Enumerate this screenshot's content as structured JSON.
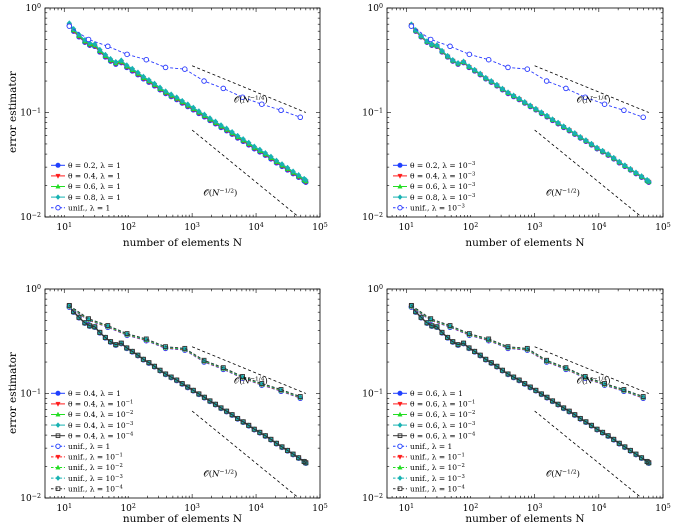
{
  "figure": {
    "panel_count": 4
  },
  "styles": {
    "0.2": {
      "color": "#1f3fff",
      "marker": "circle"
    },
    "0.4": {
      "color": "#ff1a1a",
      "marker": "triangle-down"
    },
    "0.6": {
      "color": "#22dd22",
      "marker": "triangle-up"
    },
    "0.8": {
      "color": "#17b2b2",
      "marker": "diamond"
    },
    "unif": {
      "color": "#2a3bff",
      "marker": "circle-open"
    },
    "lam1": {
      "color": "#1f3fff",
      "marker": "circle"
    },
    "lam01": {
      "color": "#ff1a1a",
      "marker": "triangle-down"
    },
    "lam02": {
      "color": "#22dd22",
      "marker": "triangle-up"
    },
    "lam03": {
      "color": "#17b2b2",
      "marker": "diamond"
    },
    "lam04": {
      "color": "#333333",
      "marker": "square"
    }
  },
  "chart_data": [
    {
      "type": "line",
      "scale": "log-log",
      "xlabel": "number of elements N",
      "ylabel": "error estimator",
      "xlim": [
        5,
        100000
      ],
      "ylim": [
        0.01,
        1
      ],
      "x_ticks": [
        "10^1",
        "10^2",
        "10^3",
        "10^4",
        "10^5"
      ],
      "y_ticks": [
        "10^-2",
        "10^-1",
        "10^0"
      ],
      "legend_position": "lower-left",
      "annotations": [
        "O(N^{-1/4})",
        "O(N^{-1/2})"
      ],
      "series": [
        {
          "name": "θ = 0.2, λ = 1",
          "style": "0.2",
          "shift": 0.0
        },
        {
          "name": "θ = 0.4, λ = 1",
          "style": "0.4",
          "shift": 0.01
        },
        {
          "name": "θ = 0.6, λ = 1",
          "style": "0.6",
          "shift": 0.025
        },
        {
          "name": "θ = 0.8, λ = 1",
          "style": "0.8",
          "shift": 0.05
        },
        {
          "name": "unif., λ = 1",
          "style": "unif",
          "uniform": true
        }
      ]
    },
    {
      "type": "line",
      "scale": "log-log",
      "xlabel": "number of elements N",
      "ylabel": "",
      "xlim": [
        5,
        100000
      ],
      "ylim": [
        0.01,
        1
      ],
      "x_ticks": [
        "10^1",
        "10^2",
        "10^3",
        "10^4",
        "10^5"
      ],
      "y_ticks": [
        "10^-2",
        "10^-1",
        "10^0"
      ],
      "legend_position": "lower-left",
      "annotations": [
        "O(N^{-1/4})",
        "O(N^{-1/2})"
      ],
      "series": [
        {
          "name": "θ = 0.2, λ = 10^-3",
          "style": "0.2",
          "shift": 0.0
        },
        {
          "name": "θ = 0.4, λ = 10^-3",
          "style": "0.4",
          "shift": 0.005
        },
        {
          "name": "θ = 0.6, λ = 10^-3",
          "style": "0.6",
          "shift": 0.015
        },
        {
          "name": "θ = 0.8, λ = 10^-3",
          "style": "0.8",
          "shift": 0.025
        },
        {
          "name": "unif., λ = 10^-3",
          "style": "unif",
          "uniform": true
        }
      ]
    },
    {
      "type": "line",
      "scale": "log-log",
      "xlabel": "number of elements N",
      "ylabel": "error estimator",
      "xlim": [
        5,
        100000
      ],
      "ylim": [
        0.01,
        1
      ],
      "x_ticks": [
        "10^1",
        "10^2",
        "10^3",
        "10^4",
        "10^5"
      ],
      "y_ticks": [
        "10^-2",
        "10^-1",
        "10^0"
      ],
      "legend_position": "lower-left",
      "annotations": [
        "O(N^{-1/4})",
        "O(N^{-1/2})"
      ],
      "series": [
        {
          "name": "θ = 0.4, λ = 1",
          "style": "lam1",
          "shift": 0.0
        },
        {
          "name": "θ = 0.4, λ = 10^-1",
          "style": "lam01",
          "shift": 0.003
        },
        {
          "name": "θ = 0.4, λ = 10^-2",
          "style": "lam02",
          "shift": 0.006
        },
        {
          "name": "θ = 0.4, λ = 10^-3",
          "style": "lam03",
          "shift": 0.009
        },
        {
          "name": "θ = 0.4, λ = 10^-4",
          "style": "lam04",
          "shift": 0.012
        },
        {
          "name": "unif., λ = 1",
          "style": "lam1",
          "uniform": true,
          "dashed": true,
          "shift": 0.0
        },
        {
          "name": "unif., λ = 10^-1",
          "style": "lam01",
          "uniform": true,
          "dashed": true,
          "shift": 0.01
        },
        {
          "name": "unif., λ = 10^-2",
          "style": "lam02",
          "uniform": true,
          "dashed": true,
          "shift": 0.02
        },
        {
          "name": "unif., λ = 10^-3",
          "style": "lam03",
          "uniform": true,
          "dashed": true,
          "shift": 0.03
        },
        {
          "name": "unif., λ = 10^-4",
          "style": "lam04",
          "uniform": true,
          "dashed": true,
          "shift": 0.04
        }
      ]
    },
    {
      "type": "line",
      "scale": "log-log",
      "xlabel": "number of elements N",
      "ylabel": "",
      "xlim": [
        5,
        100000
      ],
      "ylim": [
        0.01,
        1
      ],
      "x_ticks": [
        "10^1",
        "10^2",
        "10^3",
        "10^4",
        "10^5"
      ],
      "y_ticks": [
        "10^-2",
        "10^-1",
        "10^0"
      ],
      "legend_position": "lower-left",
      "annotations": [
        "O(N^{-1/4})",
        "O(N^{-1/2})"
      ],
      "series": [
        {
          "name": "θ = 0.6, λ = 1",
          "style": "lam1",
          "shift": 0.0
        },
        {
          "name": "θ = 0.6, λ = 10^-1",
          "style": "lam01",
          "shift": 0.003
        },
        {
          "name": "θ = 0.6, λ = 10^-2",
          "style": "lam02",
          "shift": 0.006
        },
        {
          "name": "θ = 0.6, λ = 10^-3",
          "style": "lam03",
          "shift": 0.009
        },
        {
          "name": "θ = 0.6, λ = 10^-4",
          "style": "lam04",
          "shift": 0.012
        },
        {
          "name": "unif., λ = 1",
          "style": "lam1",
          "uniform": true,
          "dashed": true,
          "shift": 0.0
        },
        {
          "name": "unif., λ = 10^-1",
          "style": "lam01",
          "uniform": true,
          "dashed": true,
          "shift": 0.01
        },
        {
          "name": "unif., λ = 10^-2",
          "style": "lam02",
          "uniform": true,
          "dashed": true,
          "shift": 0.02
        },
        {
          "name": "unif., λ = 10^-3",
          "style": "lam03",
          "uniform": true,
          "dashed": true,
          "shift": 0.03
        },
        {
          "name": "unif., λ = 10^-4",
          "style": "lam04",
          "uniform": true,
          "dashed": true,
          "shift": 0.04
        }
      ]
    }
  ],
  "adaptive_points": [
    [
      12,
      0.68
    ],
    [
      14,
      0.6
    ],
    [
      17,
      0.53
    ],
    [
      21,
      0.47
    ],
    [
      25,
      0.44
    ],
    [
      30,
      0.43
    ],
    [
      36,
      0.38
    ],
    [
      44,
      0.34
    ],
    [
      53,
      0.31
    ],
    [
      64,
      0.29
    ],
    [
      78,
      0.3
    ],
    [
      95,
      0.27
    ],
    [
      116,
      0.25
    ],
    [
      142,
      0.23
    ],
    [
      173,
      0.21
    ],
    [
      211,
      0.195
    ],
    [
      258,
      0.18
    ],
    [
      315,
      0.165
    ],
    [
      385,
      0.152
    ],
    [
      470,
      0.142
    ],
    [
      574,
      0.133
    ],
    [
      700,
      0.123
    ],
    [
      855,
      0.114
    ],
    [
      1044,
      0.106
    ],
    [
      1275,
      0.098
    ],
    [
      1557,
      0.091
    ],
    [
      1900,
      0.084
    ],
    [
      2320,
      0.078
    ],
    [
      2830,
      0.072
    ],
    [
      3460,
      0.067
    ],
    [
      4220,
      0.062
    ],
    [
      5150,
      0.057
    ],
    [
      6290,
      0.053
    ],
    [
      7680,
      0.049
    ],
    [
      9380,
      0.045
    ],
    [
      11450,
      0.042
    ],
    [
      13980,
      0.039
    ],
    [
      17070,
      0.036
    ],
    [
      20840,
      0.033
    ],
    [
      25450,
      0.0305
    ],
    [
      31070,
      0.0282
    ],
    [
      37940,
      0.026
    ],
    [
      46330,
      0.024
    ],
    [
      56570,
      0.0221
    ],
    [
      60000,
      0.0215
    ]
  ],
  "uniform_points": [
    [
      12,
      0.67
    ],
    [
      24,
      0.5
    ],
    [
      48,
      0.43
    ],
    [
      96,
      0.36
    ],
    [
      192,
      0.32
    ],
    [
      384,
      0.27
    ],
    [
      768,
      0.26
    ],
    [
      1536,
      0.2
    ],
    [
      3072,
      0.17
    ],
    [
      6144,
      0.14
    ],
    [
      12288,
      0.12
    ],
    [
      24576,
      0.105
    ],
    [
      49152,
      0.09
    ]
  ],
  "reference_lines": [
    {
      "label": "O(N^{-1/4})",
      "from": [
        1000,
        0.28
      ],
      "to": [
        60000,
        0.1
      ],
      "label_at": [
        4500,
        0.125
      ]
    },
    {
      "label": "O(N^{-1/2})",
      "from": [
        1000,
        0.068
      ],
      "to": [
        60000,
        0.0088
      ],
      "label_at": [
        1500,
        0.016
      ]
    }
  ]
}
